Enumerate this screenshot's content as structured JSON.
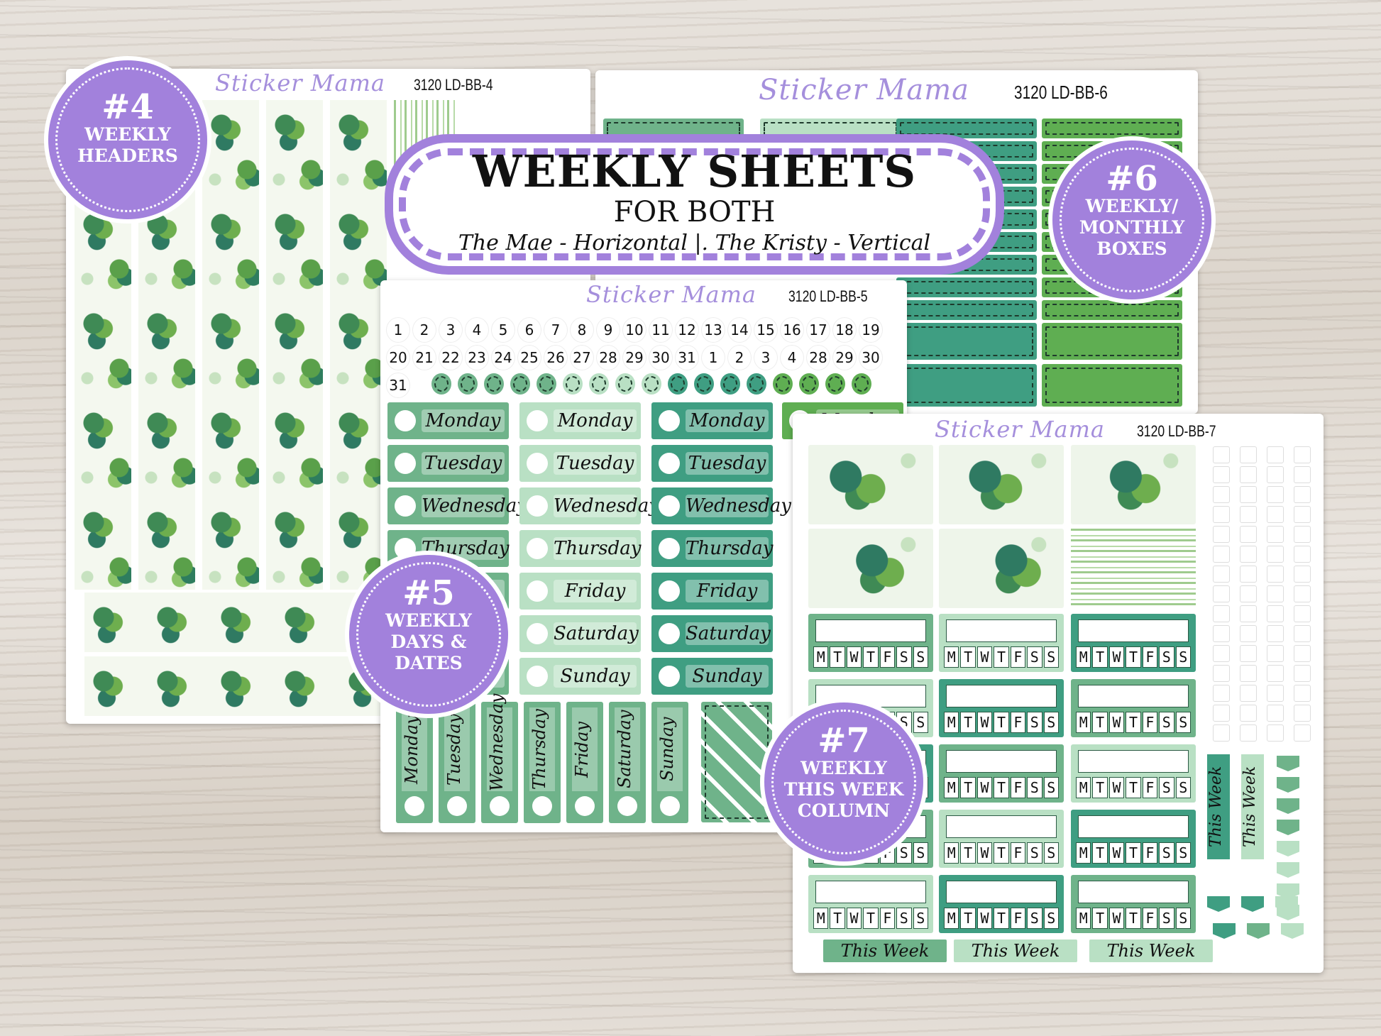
{
  "banner": {
    "title": "WEEKLY SHEETS",
    "subtitle": "FOR BOTH",
    "line": "The Mae - Horizontal |.  The Kristy - Vertical"
  },
  "brand": "Sticker Mama",
  "sheets": {
    "bb4": {
      "code": "3120 LD-BB-4"
    },
    "bb5": {
      "code": "3120 LD-BB-5"
    },
    "bb6": {
      "code": "3120 LD-BB-6"
    },
    "bb7": {
      "code": "3120 LD-BB-7"
    }
  },
  "badges": [
    {
      "num": "#4",
      "label": "WEEKLY\nHEADERS"
    },
    {
      "num": "#6",
      "label": "WEEKLY/\nMONTHLY\nBOXES"
    },
    {
      "num": "#5",
      "label": "WEEKLY\nDAYS &\nDATES"
    },
    {
      "num": "#7",
      "label": "WEEKLY\nTHIS WEEK\nCOLUMN"
    }
  ],
  "dates": [
    "1",
    "2",
    "3",
    "4",
    "5",
    "6",
    "7",
    "8",
    "9",
    "10",
    "11",
    "12",
    "13",
    "14",
    "15",
    "16",
    "17",
    "18",
    "19",
    "20",
    "21",
    "22",
    "23",
    "24",
    "25",
    "26",
    "27",
    "28",
    "29",
    "30",
    "31",
    "1",
    "2",
    "3",
    "4",
    "28",
    "29",
    "30",
    "31"
  ],
  "days": [
    "Monday",
    "Tuesday",
    "Wednesday",
    "Thursday",
    "Friday",
    "Saturday",
    "Sunday"
  ],
  "week_letters": [
    "M",
    "T",
    "W",
    "T",
    "F",
    "S",
    "S"
  ],
  "this_week": "This Week",
  "colors": {
    "sage": "#6fb38a",
    "mint": "#b9e0c4",
    "teal": "#3f9e82",
    "grass": "#5fae52",
    "purple": "#a281dc"
  }
}
